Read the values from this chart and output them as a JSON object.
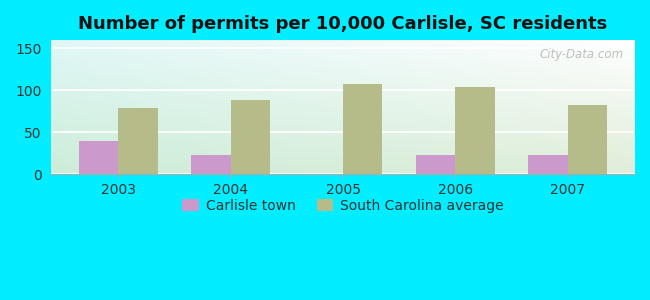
{
  "title": "Number of permits per 10,000 Carlisle, SC residents",
  "years": [
    2003,
    2004,
    2005,
    2006,
    2007
  ],
  "carlisle": [
    40,
    23,
    0,
    23,
    23
  ],
  "sc_avg": [
    79,
    89,
    108,
    104,
    82
  ],
  "carlisle_color": "#cc99cc",
  "sc_avg_color": "#b5bc8a",
  "background_outer": "#00eeff",
  "ylim": [
    0,
    160
  ],
  "yticks": [
    0,
    50,
    100,
    150
  ],
  "bar_width": 0.35,
  "legend_carlisle": "Carlisle town",
  "legend_sc": "South Carolina average",
  "watermark": "City-Data.com",
  "grid_color": "#dddddd",
  "title_fontsize": 13
}
